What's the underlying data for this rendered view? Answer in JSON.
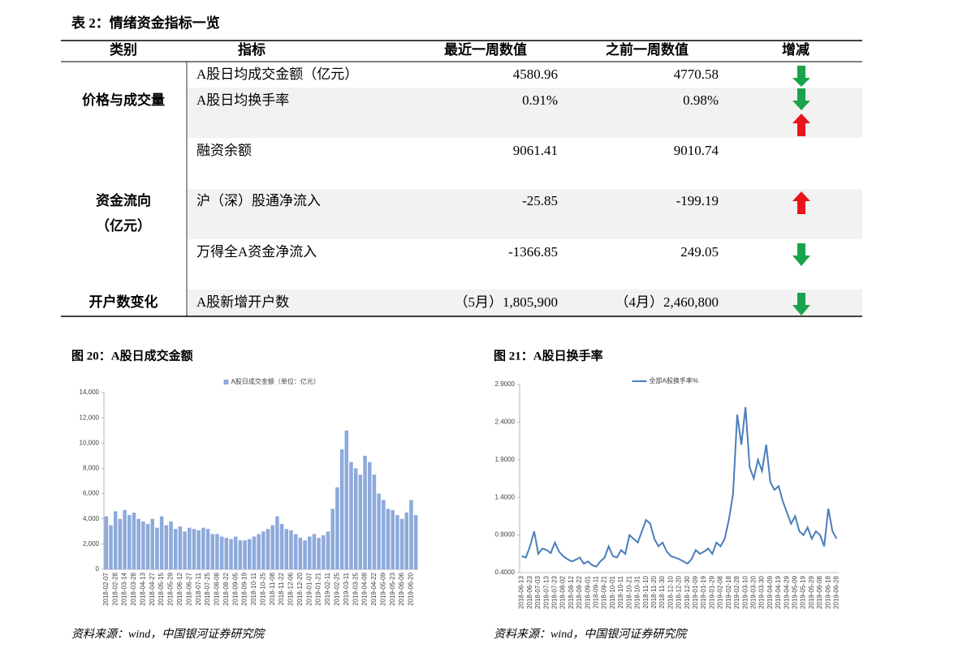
{
  "table_title": "表 2：情绪资金指标一览",
  "table": {
    "header": [
      "类别",
      "指标",
      "最近一周数值",
      "之前一周数值",
      "增减"
    ],
    "groups": [
      [
        "价格与成交量"
      ],
      [
        "资金流向",
        "（亿元）"
      ],
      [
        "开户数变化"
      ]
    ],
    "rows": [
      [
        "A股日均成交金额（亿元）",
        "4580.96",
        "4770.58"
      ],
      [
        "A股日均换手率",
        "0.91%",
        "0.98%"
      ],
      [
        "融资余额",
        "9061.41",
        "9010.74"
      ],
      [
        "沪（深）股通净流入",
        "-25.85",
        "-199.19"
      ],
      [
        "万得全A资金净流入",
        "-1366.85",
        "249.05"
      ],
      [
        "A股新增开户数",
        "（5月）1,805,900",
        "（4月）2,460,800"
      ]
    ]
  },
  "chart_data": [
    {
      "type": "bar",
      "title": "图 20：A股日成交金额",
      "source": "资料来源：wind，中国银河证券研究院",
      "categories": [
        "2018-02-07",
        null,
        "2018-02-28",
        null,
        "2018-03-14",
        null,
        "2018-03-28",
        null,
        "2018-04-13",
        null,
        "2018-04-27",
        null,
        "2018-05-15",
        null,
        "2018-05-29",
        null,
        "2018-06-12",
        null,
        "2018-06-27",
        null,
        "2018-07-11",
        null,
        "2018-07-25",
        null,
        "2018-08-08",
        null,
        "2018-08-22",
        null,
        "2018-09-05",
        null,
        "2018-09-19",
        null,
        "2018-10-11",
        null,
        "2018-10-25",
        null,
        "2018-11-08",
        null,
        "2018-11-22",
        null,
        "2018-12-06",
        null,
        "2018-12-20",
        null,
        "2019-01-07",
        null,
        "2019-01-21",
        null,
        "2019-02-11",
        null,
        "2019-02-25",
        null,
        "2019-03-11",
        null,
        "2019-03-25",
        null,
        "2019-04-08",
        null,
        "2019-04-22",
        null,
        "2019-05-09",
        null,
        "2019-05-23",
        null,
        "2019-06-06",
        null,
        "2019-06-20",
        null
      ],
      "series": [
        {
          "name": "A股日成交金额（单位：亿元）",
          "color": "#8eaadb",
          "values": [
            4200,
            3500,
            4600,
            4000,
            4700,
            4300,
            4500,
            4000,
            3800,
            3600,
            4000,
            3300,
            4200,
            3500,
            3800,
            3200,
            3400,
            3000,
            3300,
            3200,
            3100,
            3300,
            3200,
            2800,
            2800,
            2600,
            2500,
            2400,
            2600,
            2300,
            2300,
            2400,
            2600,
            2800,
            3000,
            3200,
            3500,
            4200,
            3600,
            3200,
            3100,
            2800,
            2500,
            2300,
            2600,
            2800,
            2500,
            2700,
            3000,
            4800,
            6500,
            9500,
            11000,
            8500,
            8000,
            7500,
            9000,
            8500,
            7500,
            6000,
            5500,
            4800,
            4700,
            4300,
            4000,
            4500,
            5500,
            4300
          ]
        }
      ],
      "ylim": [
        0,
        14000
      ],
      "yticks": [
        0,
        {
          "value": 2000,
          "label": "2,000"
        },
        {
          "value": 4000,
          "label": "4,000"
        },
        {
          "value": 6000,
          "label": "6,000"
        },
        {
          "value": 8000,
          "label": "8,000"
        },
        {
          "value": 10000,
          "label": "10,000"
        },
        {
          "value": 12000,
          "label": "12,000"
        },
        {
          "value": 14000,
          "label": "14,000"
        }
      ]
    },
    {
      "type": "line",
      "title": "图 21：A股日换手率",
      "source": "资料来源：wind，中国银河证券研究院",
      "categories": [
        "2018-06-13",
        null,
        "2018-06-23",
        null,
        "2018-07-03",
        null,
        "2018-07-13",
        null,
        "2018-07-23",
        null,
        "2018-08-02",
        null,
        "2018-08-12",
        null,
        "2018-08-22",
        null,
        "2018-09-01",
        null,
        "2018-09-11",
        null,
        "2018-09-21",
        null,
        "2018-10-01",
        null,
        "2018-10-11",
        null,
        "2018-10-21",
        null,
        "2018-10-31",
        null,
        "2018-11-10",
        null,
        "2018-11-20",
        null,
        "2018-11-30",
        null,
        "2018-12-10",
        null,
        "2018-12-20",
        null,
        "2018-12-30",
        null,
        "2019-01-09",
        null,
        "2019-01-19",
        null,
        "2019-01-29",
        null,
        "2019-02-08",
        null,
        "2019-02-18",
        null,
        "2019-02-28",
        null,
        "2019-03-10",
        null,
        "2019-03-20",
        null,
        "2019-03-30",
        null,
        "2019-04-09",
        null,
        "2019-04-19",
        null,
        "2019-04-29",
        null,
        "2019-05-09",
        null,
        "2019-05-19",
        null,
        "2019-05-29",
        null,
        "2019-06-08",
        null,
        "2019-06-18",
        null,
        "2019-06-28"
      ],
      "series": [
        {
          "name": "全部A股换手率%",
          "color": "#4a7ebb",
          "values": [
            0.62,
            0.6,
            0.75,
            0.95,
            0.65,
            0.72,
            0.7,
            0.66,
            0.8,
            0.68,
            0.62,
            0.58,
            0.55,
            0.57,
            0.6,
            0.52,
            0.55,
            0.5,
            0.48,
            0.55,
            0.6,
            0.75,
            0.62,
            0.6,
            0.7,
            0.65,
            0.9,
            0.85,
            0.8,
            0.95,
            1.1,
            1.05,
            0.85,
            0.75,
            0.8,
            0.68,
            0.62,
            0.6,
            0.58,
            0.55,
            0.52,
            0.58,
            0.7,
            0.65,
            0.68,
            0.72,
            0.65,
            0.8,
            0.75,
            0.85,
            1.1,
            1.45,
            2.5,
            2.1,
            2.6,
            1.8,
            1.65,
            1.9,
            1.75,
            2.1,
            1.6,
            1.5,
            1.55,
            1.35,
            1.2,
            1.05,
            1.15,
            0.95,
            0.9,
            1.0,
            0.85,
            0.95,
            0.9,
            0.75,
            1.25,
            0.95,
            0.85
          ]
        }
      ],
      "ylim": [
        0.4,
        2.9
      ],
      "yticks": [
        {
          "value": 0.4,
          "label": "0.4000"
        },
        {
          "value": 0.9,
          "label": "0.9000"
        },
        {
          "value": 1.4,
          "label": "1.4000"
        },
        {
          "value": 1.9,
          "label": "1.9000"
        },
        {
          "value": 2.4,
          "label": "2.4000"
        },
        {
          "value": 2.9,
          "label": "2.9000"
        }
      ]
    }
  ]
}
